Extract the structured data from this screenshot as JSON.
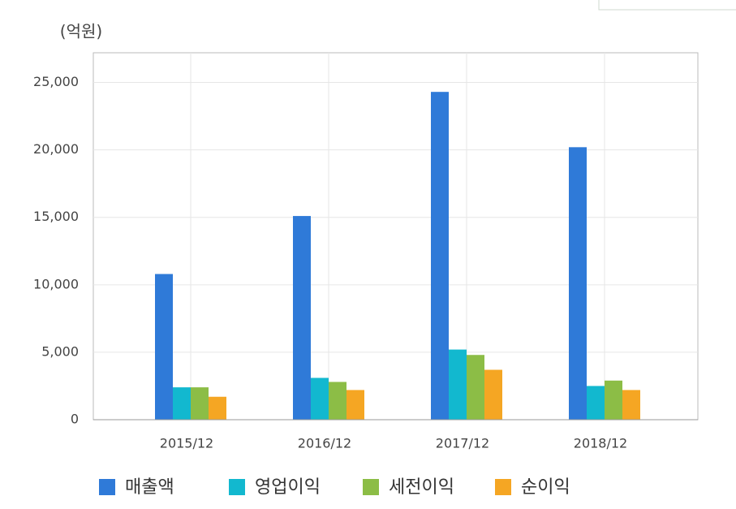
{
  "chart_data": {
    "type": "bar",
    "unit_label": "(억원)",
    "categories": [
      "2015/12",
      "2016/12",
      "2017/12",
      "2018/12"
    ],
    "series": [
      {
        "name": "매출액",
        "color": "#2f7ad8",
        "values": [
          10800,
          15100,
          24300,
          20200
        ]
      },
      {
        "name": "영업이익",
        "color": "#12b8cf",
        "values": [
          2400,
          3100,
          5200,
          2500
        ]
      },
      {
        "name": "세전이익",
        "color": "#8cbd46",
        "values": [
          2400,
          2800,
          4800,
          2900
        ]
      },
      {
        "name": "순이익",
        "color": "#f5a623",
        "values": [
          1700,
          2200,
          3700,
          2200
        ]
      }
    ],
    "ylim": [
      0,
      27200
    ],
    "yticks": [
      0,
      {
        "value": 5000,
        "label": "5,000"
      },
      {
        "value": 10000,
        "label": "10,000"
      },
      {
        "value": 15000,
        "label": "15,000"
      },
      {
        "value": 20000,
        "label": "20,000"
      },
      {
        "value": 25000,
        "label": "25,000"
      }
    ],
    "grid": true
  }
}
